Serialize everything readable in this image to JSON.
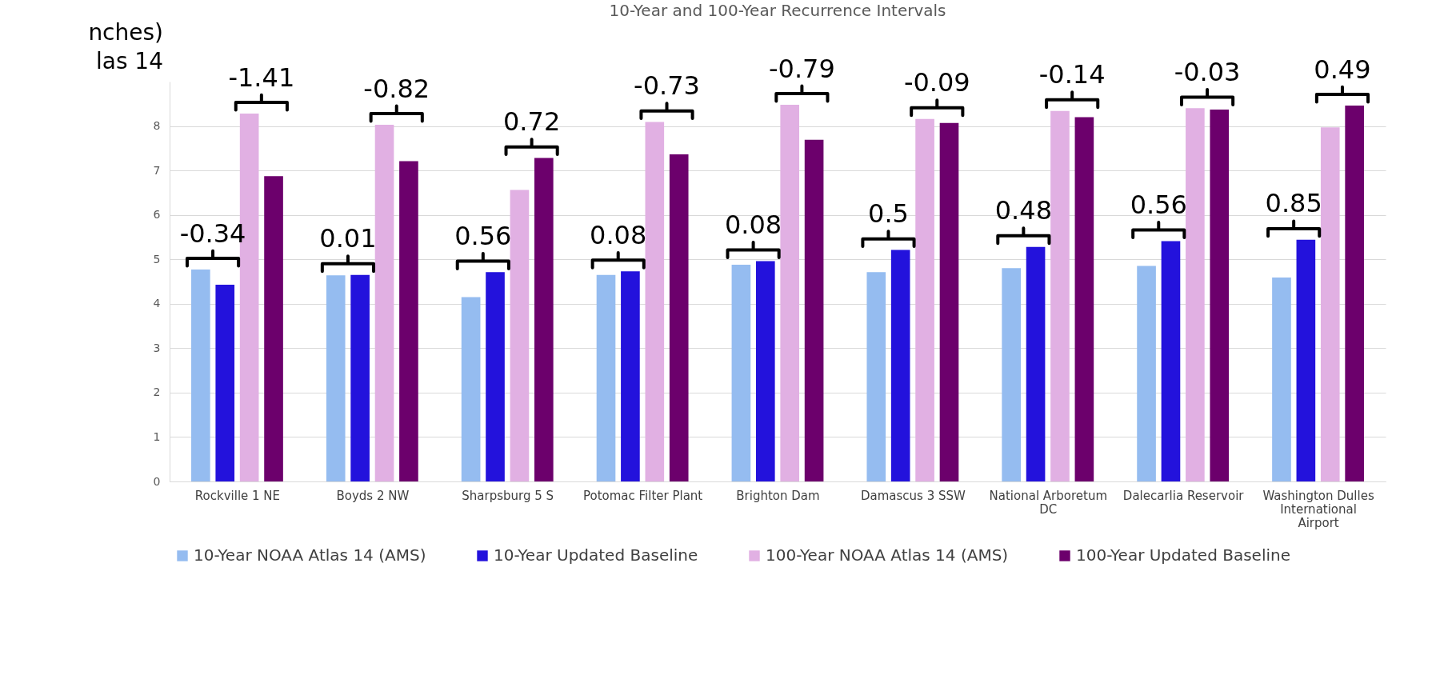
{
  "chart_data": {
    "type": "bar",
    "title": "10-Year and 100-Year Recurrence Intervals",
    "categories": [
      "Rockville 1 NE",
      "Boyds 2 NW",
      "Sharpsburg 5 S",
      "Potomac Filter Plant",
      "Brighton Dam",
      "Damascus 3 SSW",
      "National Arboretum DC",
      "Dalecarlia Reservoir",
      "Washington Dulles International Airport"
    ],
    "series": [
      {
        "name": "10-Year NOAA Atlas 14 (AMS)",
        "color": "#95bcf0",
        "values": [
          4.77,
          4.64,
          4.15,
          4.65,
          4.88,
          4.71,
          4.8,
          4.85,
          4.59
        ]
      },
      {
        "name": "10-Year Updated Baseline",
        "color": "#2312dc",
        "values": [
          4.43,
          4.65,
          4.71,
          4.73,
          4.96,
          5.21,
          5.28,
          5.41,
          5.44
        ]
      },
      {
        "name": "100-Year NOAA Atlas 14 (AMS)",
        "color": "#e1b0e3",
        "values": [
          8.28,
          8.03,
          6.56,
          8.09,
          8.48,
          8.16,
          8.34,
          8.4,
          7.97
        ]
      },
      {
        "name": "100-Year Updated Baseline",
        "color": "#6c006c",
        "values": [
          6.87,
          7.21,
          7.28,
          7.36,
          7.69,
          8.07,
          8.2,
          8.37,
          8.46
        ]
      }
    ],
    "ylim": [
      0,
      9
    ],
    "yticks": [
      0,
      1,
      2,
      3,
      4,
      5,
      6,
      7,
      8
    ],
    "grid": "y",
    "legend": "bottom",
    "annotations": [
      "-0.34",
      "-1.41",
      "0.01",
      "-0.82",
      "0.56",
      "0.72",
      "0.08",
      "-0.73",
      "0.08",
      "-0.79",
      "0.5",
      "-0.09",
      "0.48",
      "-0.14",
      "0.56",
      "-0.03",
      "0.85",
      "0.49",
      "nches)",
      "las 14"
    ]
  }
}
